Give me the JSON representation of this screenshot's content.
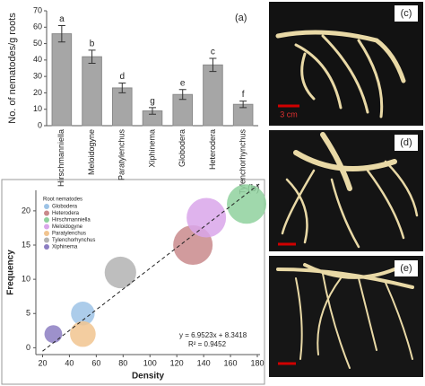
{
  "chart_data": [
    {
      "type": "bar",
      "panel": "(a)",
      "ylabel": "No. of nematodes/g roots",
      "categories": [
        "Hirschmanniella",
        "Meloidogyne",
        "Paratylenchus",
        "Xiphinema",
        "Globodera",
        "Heterodera",
        "Tylenchorhynchus"
      ],
      "values": [
        56,
        42,
        23,
        9,
        19,
        37,
        13
      ],
      "errors": [
        5,
        4,
        3,
        2,
        3,
        4,
        2
      ],
      "annotations": [
        "a",
        "b",
        "d",
        "g",
        "e",
        "c",
        "f"
      ],
      "color": "#a6a6a6",
      "ylim": [
        0,
        70
      ],
      "yticks": [
        0,
        10,
        20,
        30,
        40,
        50,
        60,
        70
      ]
    },
    {
      "type": "scatter",
      "panel": "(b)",
      "xlabel": "Density",
      "ylabel": "Frequency",
      "legend_title": "Root nematodes",
      "series": [
        {
          "name": "Globodera",
          "color": "#9dc3e6",
          "x": [
            50
          ],
          "values": [
            5
          ],
          "sizes": [
            6
          ]
        },
        {
          "name": "Heterodera",
          "color": "#c98a8c",
          "x": [
            132
          ],
          "values": [
            15
          ],
          "sizes": [
            10
          ]
        },
        {
          "name": "Hirschmanniella",
          "color": "#8fd19e",
          "x": [
            172
          ],
          "values": [
            21
          ],
          "sizes": [
            10
          ]
        },
        {
          "name": "Meloidogyne",
          "color": "#d9a6ea",
          "x": [
            142
          ],
          "values": [
            19
          ],
          "sizes": [
            10
          ]
        },
        {
          "name": "Paratylenchus",
          "color": "#f1c48f",
          "x": [
            50
          ],
          "values": [
            2
          ],
          "sizes": [
            6.5
          ]
        },
        {
          "name": "Tylenchorhynchus",
          "color": "#b3b3b3",
          "x": [
            78
          ],
          "values": [
            11
          ],
          "sizes": [
            8
          ]
        },
        {
          "name": "Xiphinema",
          "color": "#8c7ec2",
          "x": [
            28
          ],
          "values": [
            2
          ],
          "sizes": [
            4.5
          ]
        }
      ],
      "trendline": {
        "x": [
          20,
          182
        ],
        "values": [
          -0.5,
          24
        ]
      },
      "equation": "y = 6.9523x + 8.3418",
      "r2": "R² = 0.9452",
      "xlim": [
        15,
        182
      ],
      "ylim": [
        -1,
        23
      ],
      "xticks": [
        20,
        40,
        60,
        80,
        100,
        120,
        140,
        160,
        180
      ],
      "yticks": [
        0,
        5,
        10,
        15,
        20
      ]
    }
  ],
  "photos": [
    {
      "label": "(c)",
      "scale": "3 cm"
    },
    {
      "label": "(d)"
    },
    {
      "label": "(e)"
    }
  ]
}
